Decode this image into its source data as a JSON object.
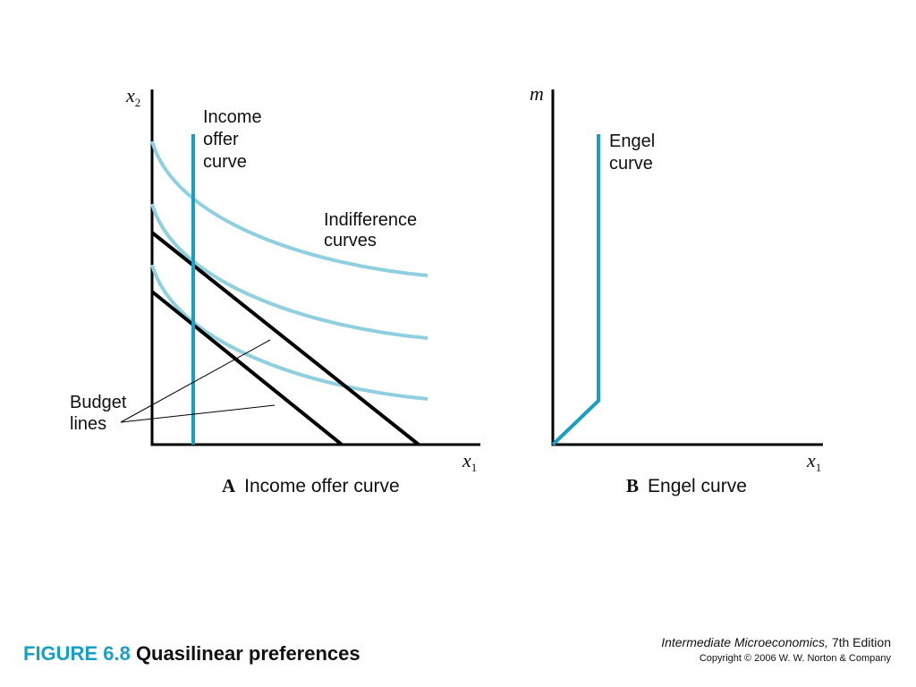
{
  "panel_a": {
    "letter": "A",
    "title": "Income offer curve",
    "y_axis_label": "x",
    "y_axis_subscript": "2",
    "x_axis_label": "x",
    "x_axis_subscript": "1",
    "offer_curve_label": [
      "Income",
      "offer",
      "curve"
    ],
    "indifference_label": [
      "Indifference",
      "curves"
    ],
    "budget_label": [
      "Budget",
      "lines"
    ]
  },
  "panel_b": {
    "letter": "B",
    "title": "Engel curve",
    "y_axis_label": "m",
    "x_axis_label": "x",
    "x_axis_subscript": "1",
    "engel_label": [
      "Engel",
      "curve"
    ]
  },
  "caption": {
    "figure_number": "FIGURE 6.8",
    "title": "Quasilinear preferences"
  },
  "credit": {
    "book_title": "Intermediate Microeconomics,",
    "edition": "7th Edition",
    "copyright": "Copyright © 2006 W. W. Norton & Company"
  },
  "colors": {
    "offer_curve": "#1a9fc4",
    "indifference_curves": "#8fd0e0",
    "budget_lines": "#000000",
    "figure_number": "#1a9fc4"
  }
}
